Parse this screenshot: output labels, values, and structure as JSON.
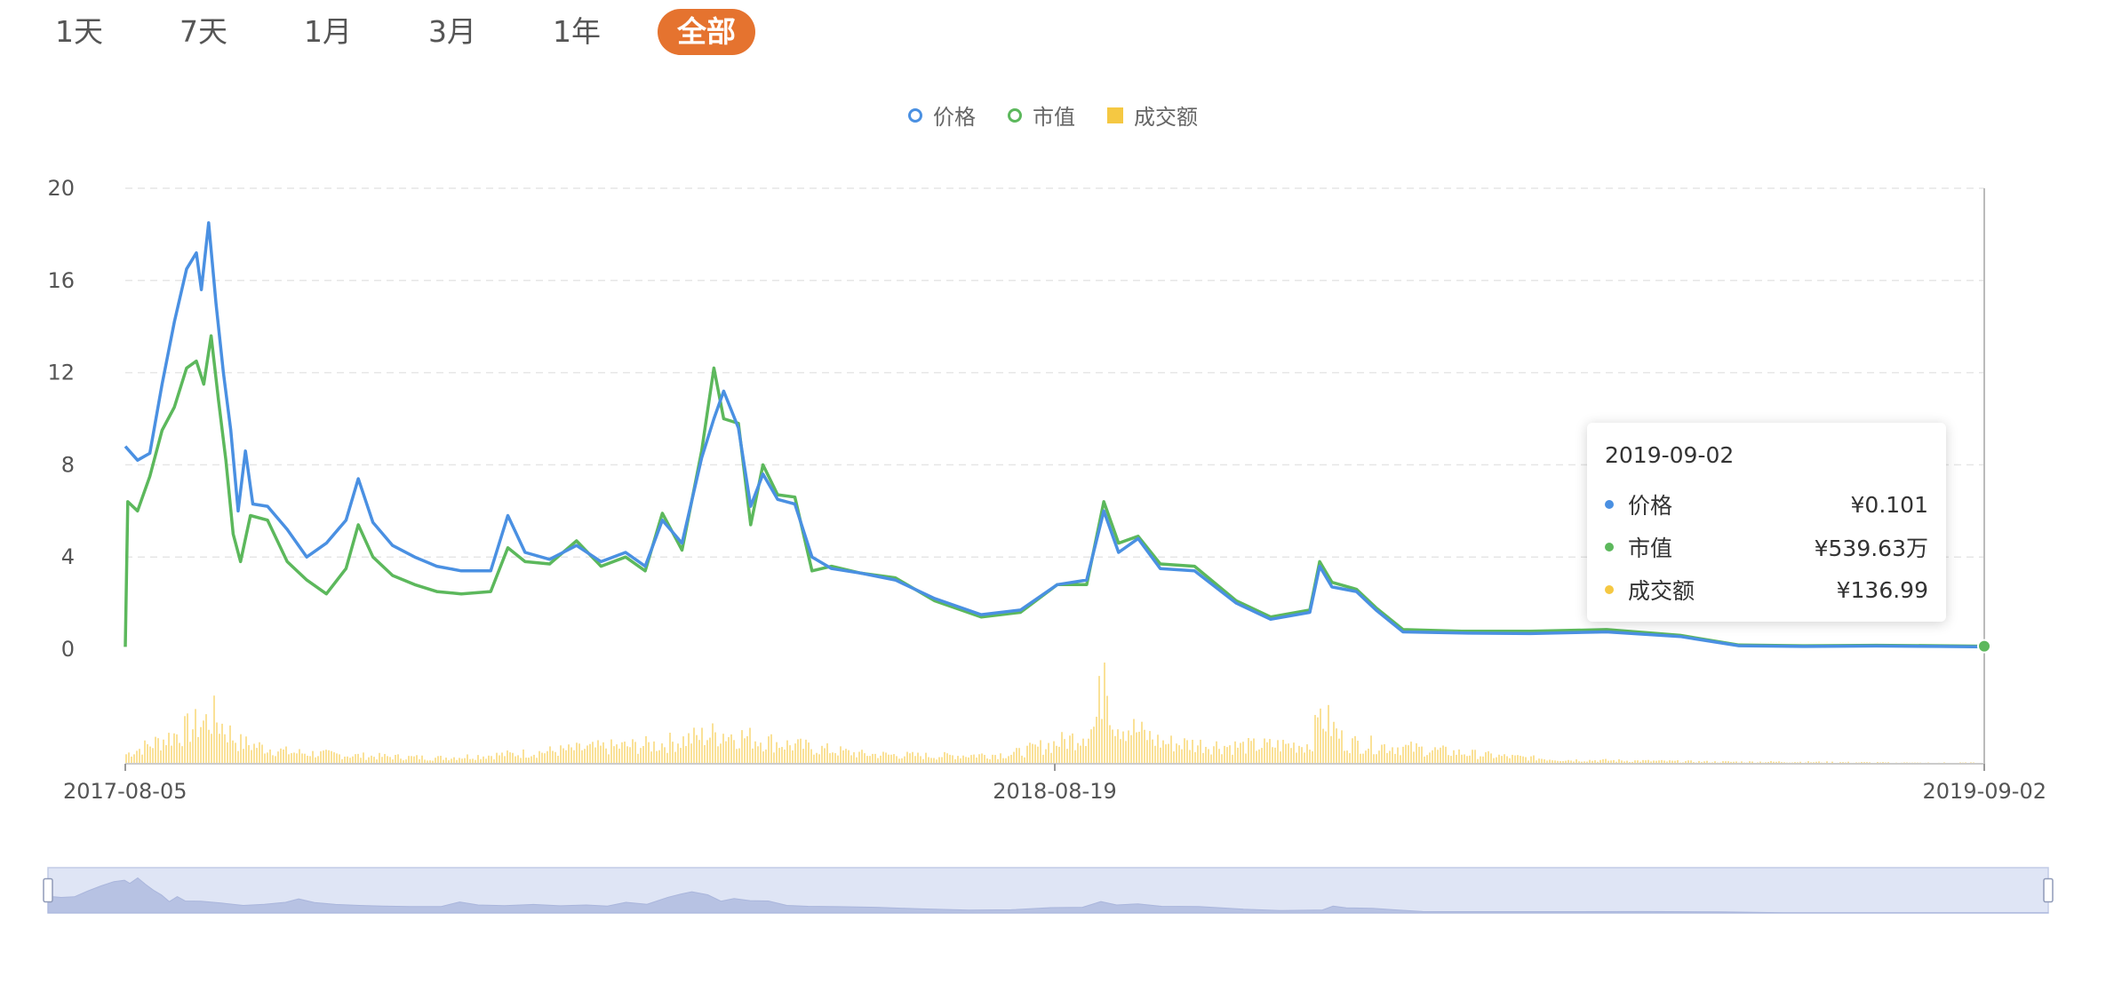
{
  "range": {
    "buttons": [
      "1天",
      "7天",
      "1月",
      "3月",
      "1年",
      "全部"
    ],
    "active_index": 5
  },
  "legend": [
    {
      "name": "价格",
      "marker": "circle",
      "color": "#4a90e2"
    },
    {
      "name": "市值",
      "marker": "circle",
      "color": "#5cb85c"
    },
    {
      "name": "成交额",
      "marker": "square",
      "color": "#f5c842"
    }
  ],
  "tooltip": {
    "date": "2019-09-02",
    "rows": [
      {
        "name": "价格",
        "value": "¥0.101",
        "color": "#4a90e2"
      },
      {
        "name": "市值",
        "value": "¥539.63万",
        "color": "#5cb85c"
      },
      {
        "name": "成交额",
        "value": "¥136.99",
        "color": "#f5c842"
      }
    ]
  },
  "chart_data": {
    "type": "line",
    "y_ticks": [
      "20",
      "16",
      "12",
      "8",
      "4",
      "0"
    ],
    "ylim": [
      0,
      20
    ],
    "grid": true,
    "legend_position": "top-center",
    "x_labels": [
      "2017-08-05",
      "2018-08-19",
      "2019-09-02"
    ],
    "xlim": [
      "2017-08-05",
      "2019-09-02"
    ],
    "series": [
      {
        "name": "价格",
        "color": "#4a90e2",
        "points": [
          [
            "2017-08-05",
            8.8
          ],
          [
            "2017-08-10",
            8.2
          ],
          [
            "2017-08-15",
            8.5
          ],
          [
            "2017-08-20",
            11.5
          ],
          [
            "2017-08-25",
            14.2
          ],
          [
            "2017-08-30",
            16.5
          ],
          [
            "2017-09-03",
            17.2
          ],
          [
            "2017-09-05",
            15.6
          ],
          [
            "2017-09-08",
            18.5
          ],
          [
            "2017-09-11",
            15.0
          ],
          [
            "2017-09-14",
            12.0
          ],
          [
            "2017-09-17",
            9.5
          ],
          [
            "2017-09-20",
            6.0
          ],
          [
            "2017-09-23",
            8.6
          ],
          [
            "2017-09-26",
            6.3
          ],
          [
            "2017-10-02",
            6.2
          ],
          [
            "2017-10-10",
            5.2
          ],
          [
            "2017-10-18",
            4.0
          ],
          [
            "2017-10-26",
            4.6
          ],
          [
            "2017-11-03",
            5.6
          ],
          [
            "2017-11-08",
            7.4
          ],
          [
            "2017-11-14",
            5.5
          ],
          [
            "2017-11-22",
            4.5
          ],
          [
            "2017-12-01",
            4.0
          ],
          [
            "2017-12-10",
            3.6
          ],
          [
            "2017-12-20",
            3.4
          ],
          [
            "2018-01-01",
            3.4
          ],
          [
            "2018-01-08",
            5.8
          ],
          [
            "2018-01-15",
            4.2
          ],
          [
            "2018-01-25",
            3.9
          ],
          [
            "2018-02-05",
            4.5
          ],
          [
            "2018-02-15",
            3.8
          ],
          [
            "2018-02-25",
            4.2
          ],
          [
            "2018-03-05",
            3.6
          ],
          [
            "2018-03-12",
            5.6
          ],
          [
            "2018-03-20",
            4.6
          ],
          [
            "2018-03-28",
            8.3
          ],
          [
            "2018-04-02",
            10.0
          ],
          [
            "2018-04-06",
            11.2
          ],
          [
            "2018-04-12",
            9.6
          ],
          [
            "2018-04-17",
            6.2
          ],
          [
            "2018-04-22",
            7.6
          ],
          [
            "2018-04-28",
            6.5
          ],
          [
            "2018-05-05",
            6.3
          ],
          [
            "2018-05-12",
            4.0
          ],
          [
            "2018-05-20",
            3.5
          ],
          [
            "2018-06-01",
            3.3
          ],
          [
            "2018-06-15",
            3.0
          ],
          [
            "2018-07-01",
            2.2
          ],
          [
            "2018-07-20",
            1.5
          ],
          [
            "2018-08-05",
            1.7
          ],
          [
            "2018-08-20",
            2.8
          ],
          [
            "2018-09-01",
            3.0
          ],
          [
            "2018-09-08",
            6.0
          ],
          [
            "2018-09-14",
            4.2
          ],
          [
            "2018-09-22",
            4.8
          ],
          [
            "2018-10-01",
            3.5
          ],
          [
            "2018-10-15",
            3.4
          ],
          [
            "2018-11-01",
            2.0
          ],
          [
            "2018-11-15",
            1.3
          ],
          [
            "2018-12-01",
            1.6
          ],
          [
            "2018-12-05",
            3.6
          ],
          [
            "2018-12-10",
            2.7
          ],
          [
            "2018-12-20",
            2.5
          ],
          [
            "2018-12-28",
            1.7
          ],
          [
            "2019-01-08",
            0.75
          ],
          [
            "2019-02-01",
            0.7
          ],
          [
            "2019-03-01",
            0.68
          ],
          [
            "2019-04-01",
            0.75
          ],
          [
            "2019-05-01",
            0.55
          ],
          [
            "2019-05-25",
            0.15
          ],
          [
            "2019-06-20",
            0.12
          ],
          [
            "2019-07-20",
            0.14
          ],
          [
            "2019-08-15",
            0.12
          ],
          [
            "2019-09-02",
            0.101
          ]
        ]
      },
      {
        "name": "市值",
        "color": "#5cb85c",
        "points": [
          [
            "2017-08-05",
            0.1
          ],
          [
            "2017-08-06",
            6.4
          ],
          [
            "2017-08-10",
            6.0
          ],
          [
            "2017-08-15",
            7.5
          ],
          [
            "2017-08-20",
            9.5
          ],
          [
            "2017-08-25",
            10.5
          ],
          [
            "2017-08-30",
            12.2
          ],
          [
            "2017-09-03",
            12.5
          ],
          [
            "2017-09-06",
            11.5
          ],
          [
            "2017-09-09",
            13.6
          ],
          [
            "2017-09-12",
            10.8
          ],
          [
            "2017-09-15",
            8.2
          ],
          [
            "2017-09-18",
            5.0
          ],
          [
            "2017-09-21",
            3.8
          ],
          [
            "2017-09-25",
            5.8
          ],
          [
            "2017-10-02",
            5.6
          ],
          [
            "2017-10-10",
            3.8
          ],
          [
            "2017-10-18",
            3.0
          ],
          [
            "2017-10-26",
            2.4
          ],
          [
            "2017-11-03",
            3.5
          ],
          [
            "2017-11-08",
            5.4
          ],
          [
            "2017-11-14",
            4.0
          ],
          [
            "2017-11-22",
            3.2
          ],
          [
            "2017-12-01",
            2.8
          ],
          [
            "2017-12-10",
            2.5
          ],
          [
            "2017-12-20",
            2.4
          ],
          [
            "2018-01-01",
            2.5
          ],
          [
            "2018-01-08",
            4.4
          ],
          [
            "2018-01-15",
            3.8
          ],
          [
            "2018-01-25",
            3.7
          ],
          [
            "2018-02-05",
            4.7
          ],
          [
            "2018-02-15",
            3.6
          ],
          [
            "2018-02-25",
            4.0
          ],
          [
            "2018-03-05",
            3.4
          ],
          [
            "2018-03-12",
            5.9
          ],
          [
            "2018-03-20",
            4.3
          ],
          [
            "2018-03-28",
            8.6
          ],
          [
            "2018-04-02",
            12.2
          ],
          [
            "2018-04-06",
            10.0
          ],
          [
            "2018-04-12",
            9.8
          ],
          [
            "2018-04-17",
            5.4
          ],
          [
            "2018-04-22",
            8.0
          ],
          [
            "2018-04-28",
            6.7
          ],
          [
            "2018-05-05",
            6.6
          ],
          [
            "2018-05-12",
            3.4
          ],
          [
            "2018-05-20",
            3.6
          ],
          [
            "2018-06-01",
            3.3
          ],
          [
            "2018-06-15",
            3.1
          ],
          [
            "2018-07-01",
            2.1
          ],
          [
            "2018-07-20",
            1.4
          ],
          [
            "2018-08-05",
            1.6
          ],
          [
            "2018-08-20",
            2.8
          ],
          [
            "2018-09-01",
            2.8
          ],
          [
            "2018-09-08",
            6.4
          ],
          [
            "2018-09-14",
            4.6
          ],
          [
            "2018-09-22",
            4.9
          ],
          [
            "2018-10-01",
            3.7
          ],
          [
            "2018-10-15",
            3.6
          ],
          [
            "2018-11-01",
            2.1
          ],
          [
            "2018-11-15",
            1.4
          ],
          [
            "2018-12-01",
            1.7
          ],
          [
            "2018-12-05",
            3.8
          ],
          [
            "2018-12-10",
            2.9
          ],
          [
            "2018-12-20",
            2.6
          ],
          [
            "2018-12-28",
            1.8
          ],
          [
            "2019-01-08",
            0.85
          ],
          [
            "2019-02-01",
            0.78
          ],
          [
            "2019-03-01",
            0.78
          ],
          [
            "2019-04-01",
            0.85
          ],
          [
            "2019-05-01",
            0.6
          ],
          [
            "2019-05-25",
            0.18
          ],
          [
            "2019-06-20",
            0.15
          ],
          [
            "2019-07-20",
            0.17
          ],
          [
            "2019-08-15",
            0.15
          ],
          [
            "2019-09-02",
            0.13
          ]
        ]
      },
      {
        "name": "成交额",
        "type": "bar",
        "color": "#f5c842",
        "relative_scale": true,
        "points": [
          [
            "2017-08-05",
            0.1
          ],
          [
            "2017-08-20",
            0.25
          ],
          [
            "2017-09-03",
            0.4
          ],
          [
            "2017-09-10",
            0.48
          ],
          [
            "2017-09-20",
            0.22
          ],
          [
            "2017-10-10",
            0.12
          ],
          [
            "2017-11-10",
            0.08
          ],
          [
            "2017-12-10",
            0.06
          ],
          [
            "2018-01-10",
            0.1
          ],
          [
            "2018-02-10",
            0.16
          ],
          [
            "2018-03-10",
            0.2
          ],
          [
            "2018-04-05",
            0.32
          ],
          [
            "2018-05-01",
            0.2
          ],
          [
            "2018-06-01",
            0.1
          ],
          [
            "2018-07-01",
            0.08
          ],
          [
            "2018-08-01",
            0.1
          ],
          [
            "2018-08-25",
            0.25
          ],
          [
            "2018-09-04",
            0.38
          ],
          [
            "2018-09-08",
            0.96
          ],
          [
            "2018-09-12",
            0.45
          ],
          [
            "2018-10-01",
            0.22
          ],
          [
            "2018-11-01",
            0.18
          ],
          [
            "2018-12-01",
            0.2
          ],
          [
            "2018-12-05",
            0.52
          ],
          [
            "2018-12-15",
            0.22
          ],
          [
            "2019-01-15",
            0.15
          ],
          [
            "2019-02-15",
            0.08
          ],
          [
            "2019-03-15",
            0.04
          ],
          [
            "2019-04-15",
            0.03
          ],
          [
            "2019-05-15",
            0.02
          ],
          [
            "2019-06-15",
            0.02
          ],
          [
            "2019-08-01",
            0.01
          ],
          [
            "2019-09-02",
            0.01
          ]
        ]
      }
    ]
  }
}
